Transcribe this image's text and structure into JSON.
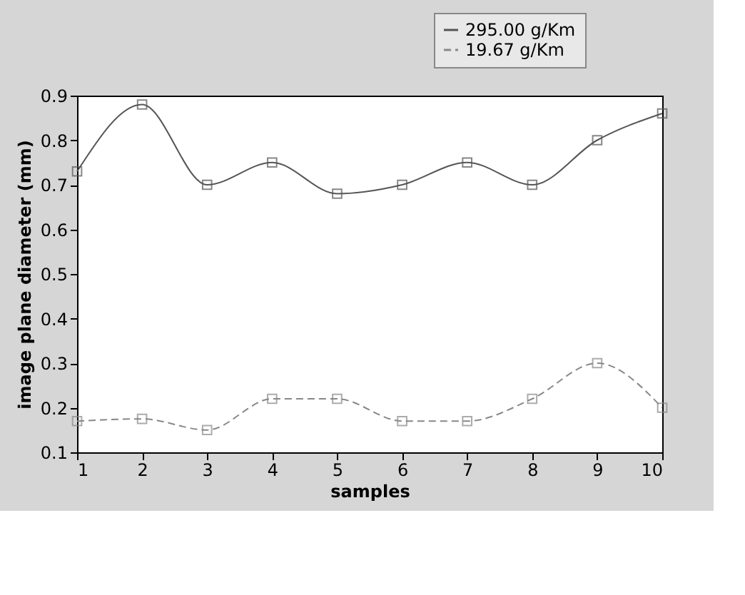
{
  "chart_data": {
    "type": "line",
    "xlabel": "samples",
    "ylabel": "image plane diameter (mm)",
    "x": [
      1,
      2,
      3,
      4,
      5,
      6,
      7,
      8,
      9,
      10
    ],
    "series": [
      {
        "name": "295.00 g/Km",
        "color": "#555555",
        "line_style": "solid",
        "values": [
          0.73,
          0.88,
          0.7,
          0.75,
          0.68,
          0.7,
          0.75,
          0.7,
          0.8,
          0.86
        ]
      },
      {
        "name": "19.67 g/Km",
        "color": "#888888",
        "line_style": "dashed",
        "values": [
          0.17,
          0.175,
          0.15,
          0.22,
          0.22,
          0.17,
          0.17,
          0.22,
          0.3,
          0.2
        ]
      }
    ],
    "xlim": [
      1,
      10
    ],
    "xticks": [
      1,
      2,
      3,
      4,
      5,
      6,
      7,
      8,
      9,
      10
    ],
    "ylim": [
      0.1,
      0.9
    ],
    "yticks": [
      0.1,
      0.2,
      0.3,
      0.4,
      0.5,
      0.6,
      0.7,
      0.8,
      0.9
    ],
    "marker": "square",
    "grid": false,
    "legend": "top right"
  }
}
